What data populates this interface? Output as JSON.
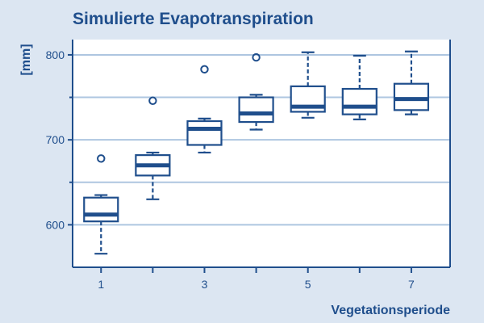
{
  "colors": {
    "background": "#dce6f2",
    "plot_background": "#ffffff",
    "primary": "#1f4e8c",
    "gridline": "#aec6e0"
  },
  "chart_data": {
    "type": "boxplot",
    "title": "Simulierte Evapotranspiration",
    "ylabel": "[mm]",
    "xlabel": "Vegetationsperiode",
    "ylim": [
      550,
      818
    ],
    "xlim": [
      0.45,
      7.75
    ],
    "grid": "horizontal",
    "yticks": [
      {
        "value": 600,
        "label": "600"
      },
      {
        "value": 700,
        "label": "700"
      },
      {
        "value": 800,
        "label": "800"
      }
    ],
    "yminor_ticks": [
      650,
      750
    ],
    "xticks": [
      {
        "value": 1,
        "label": "1"
      },
      {
        "value": 2,
        "label": ""
      },
      {
        "value": 3,
        "label": "3"
      },
      {
        "value": 4,
        "label": ""
      },
      {
        "value": 5,
        "label": "5"
      },
      {
        "value": 6,
        "label": ""
      },
      {
        "value": 7,
        "label": "7"
      }
    ],
    "boxes": [
      {
        "x": 1,
        "whisker_low": 566,
        "q1": 604,
        "median": 612,
        "q3": 632,
        "whisker_high": 635,
        "outliers": [
          678
        ]
      },
      {
        "x": 2,
        "whisker_low": 630,
        "q1": 658,
        "median": 670,
        "q3": 682,
        "whisker_high": 685,
        "outliers": [
          746
        ]
      },
      {
        "x": 3,
        "whisker_low": 685,
        "q1": 694,
        "median": 713,
        "q3": 722,
        "whisker_high": 725,
        "outliers": [
          783
        ]
      },
      {
        "x": 4,
        "whisker_low": 712,
        "q1": 721,
        "median": 731,
        "q3": 750,
        "whisker_high": 753,
        "outliers": [
          797
        ]
      },
      {
        "x": 5,
        "whisker_low": 726,
        "q1": 733,
        "median": 739,
        "q3": 763,
        "whisker_high": 803,
        "outliers": []
      },
      {
        "x": 6,
        "whisker_low": 724,
        "q1": 730,
        "median": 739,
        "q3": 760,
        "whisker_high": 799,
        "outliers": []
      },
      {
        "x": 7,
        "whisker_low": 730,
        "q1": 735,
        "median": 748,
        "q3": 766,
        "whisker_high": 804,
        "outliers": []
      }
    ]
  }
}
